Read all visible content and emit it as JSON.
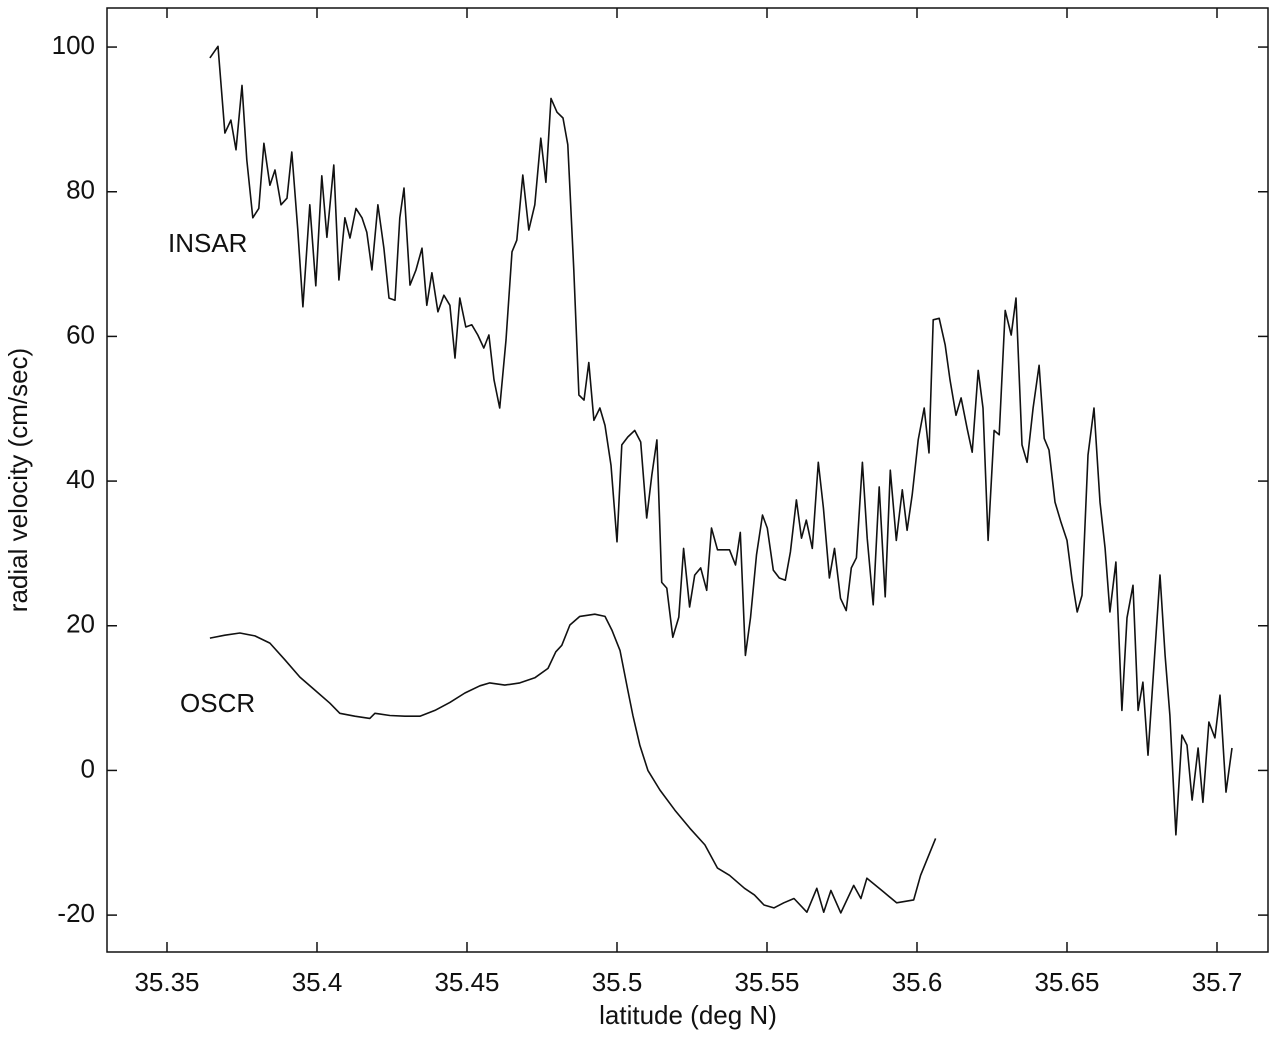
{
  "chart_data": {
    "type": "line",
    "xlabel": "latitude (deg N)",
    "ylabel": "radial velocity (cm/sec)",
    "xlim": [
      35.33,
      35.717
    ],
    "ylim": [
      -25.1,
      105.4
    ],
    "xticks": [
      35.35,
      35.4,
      35.45,
      35.5,
      35.55,
      35.6,
      35.65,
      35.7
    ],
    "yticks": [
      -20,
      0,
      20,
      40,
      60,
      80,
      100
    ],
    "grid": false,
    "series": [
      {
        "name": "INSAR",
        "color": "#111111",
        "x": [
          35.3643,
          35.367,
          35.3693,
          35.3713,
          35.373,
          35.375,
          35.3766,
          35.3786,
          35.3806,
          35.3823,
          35.3843,
          35.386,
          35.388,
          35.39,
          35.3916,
          35.3936,
          35.3953,
          35.3976,
          35.3996,
          35.4016,
          35.4033,
          35.4056,
          35.4073,
          35.4093,
          35.411,
          35.413,
          35.415,
          35.4166,
          35.4183,
          35.4203,
          35.4223,
          35.424,
          35.426,
          35.4276,
          35.429,
          35.431,
          35.433,
          35.435,
          35.4366,
          35.4383,
          35.4403,
          35.4423,
          35.4443,
          35.446,
          35.4476,
          35.4496,
          35.4516,
          35.4536,
          35.4556,
          35.4573,
          35.459,
          35.4609,
          35.463,
          35.465,
          35.4666,
          35.4686,
          35.4706,
          35.4726,
          35.4746,
          35.4763,
          35.478,
          35.48,
          35.482,
          35.4836,
          35.4856,
          35.4873,
          35.489,
          35.4906,
          35.4923,
          35.4943,
          35.496,
          35.498,
          35.5,
          35.5016,
          35.5036,
          35.5059,
          35.5079,
          35.5099,
          35.5116,
          35.5133,
          35.5149,
          35.5166,
          35.5186,
          35.5206,
          35.5222,
          35.5242,
          35.5259,
          35.5279,
          35.5299,
          35.5315,
          35.5335,
          35.5355,
          35.5375,
          35.5395,
          35.5411,
          35.5428,
          35.5445,
          35.5465,
          35.5485,
          35.5501,
          35.5521,
          35.5541,
          35.5561,
          35.5578,
          35.5598,
          35.5615,
          35.5631,
          35.5651,
          35.5671,
          35.5688,
          35.5708,
          35.5725,
          35.5745,
          35.5764,
          35.5781,
          35.5798,
          35.5818,
          35.5834,
          35.5854,
          35.5874,
          35.5894,
          35.5911,
          35.5931,
          35.5951,
          35.5967,
          35.5984,
          35.6004,
          35.6024,
          35.604,
          35.6054,
          35.6074,
          35.6094,
          35.611,
          35.613,
          35.6147,
          35.6167,
          35.6184,
          35.6204,
          35.622,
          35.6237,
          35.6257,
          35.6274,
          35.6294,
          35.6314,
          35.633,
          35.635,
          35.6367,
          35.6387,
          35.6407,
          35.6424,
          35.644,
          35.646,
          35.648,
          35.65,
          35.6517,
          35.6534,
          35.655,
          35.657,
          35.659,
          35.661,
          35.6627,
          35.6643,
          35.6663,
          35.6683,
          35.67,
          35.672,
          35.6737,
          35.6753,
          35.677,
          35.679,
          35.681,
          35.6827,
          35.6843,
          35.6863,
          35.6883,
          35.69,
          35.6917,
          35.6937,
          35.6953,
          35.6973,
          35.6993,
          35.701,
          35.703,
          35.705
        ],
        "values": [
          98.5,
          100.1,
          88.1,
          89.9,
          85.8,
          94.7,
          84.4,
          76.4,
          77.7,
          86.7,
          80.9,
          83.0,
          78.2,
          79.1,
          85.5,
          74.7,
          64.1,
          78.2,
          67.0,
          82.2,
          73.7,
          83.7,
          67.8,
          76.4,
          73.6,
          77.7,
          76.4,
          74.4,
          69.2,
          78.2,
          72.2,
          65.3,
          65.0,
          76.4,
          80.5,
          67.1,
          69.2,
          72.2,
          64.3,
          68.8,
          63.4,
          65.7,
          64.3,
          57.0,
          65.3,
          61.3,
          61.6,
          60.2,
          58.4,
          60.2,
          54.0,
          50.1,
          59.5,
          71.7,
          73.3,
          82.3,
          74.7,
          78.2,
          87.4,
          81.3,
          92.9,
          91.0,
          90.2,
          86.5,
          69.2,
          51.9,
          51.2,
          56.4,
          48.4,
          50.1,
          47.7,
          42.2,
          31.6,
          45.0,
          46.1,
          47.0,
          45.4,
          34.9,
          40.8,
          45.7,
          26.0,
          25.2,
          18.4,
          21.2,
          30.7,
          22.6,
          27.0,
          28.0,
          24.9,
          33.5,
          30.5,
          30.5,
          30.5,
          28.4,
          32.9,
          15.9,
          21.1,
          29.8,
          35.3,
          33.5,
          27.7,
          26.6,
          26.3,
          30.2,
          37.4,
          32.1,
          34.6,
          30.7,
          42.6,
          36.3,
          26.6,
          30.7,
          23.8,
          22.1,
          28.0,
          29.4,
          42.6,
          32.1,
          22.9,
          39.2,
          24.0,
          41.5,
          31.8,
          38.8,
          33.2,
          38.1,
          45.7,
          50.1,
          43.9,
          62.3,
          62.5,
          58.8,
          54.0,
          49.1,
          51.5,
          47.3,
          44.0,
          55.3,
          50.1,
          31.8,
          47.0,
          46.4,
          63.6,
          60.2,
          65.3,
          45.0,
          42.6,
          50.1,
          56.0,
          45.9,
          44.3,
          37.1,
          34.3,
          31.8,
          26.3,
          21.9,
          24.2,
          43.6,
          50.1,
          37.1,
          30.7,
          21.9,
          28.8,
          8.3,
          21.1,
          25.6,
          8.3,
          12.2,
          2.1,
          14.6,
          27.0,
          15.9,
          7.6,
          -8.9,
          4.9,
          3.5,
          -4.1,
          3.1,
          -4.4,
          6.7,
          4.5,
          10.4,
          -3.0,
          3.1
        ]
      },
      {
        "name": "OSCR",
        "color": "#111111",
        "x": [
          35.3643,
          35.3693,
          35.3743,
          35.3793,
          35.3843,
          35.3893,
          35.3943,
          35.3993,
          35.4043,
          35.4076,
          35.4126,
          35.4176,
          35.4193,
          35.4243,
          35.4293,
          35.4343,
          35.4393,
          35.4443,
          35.4493,
          35.4543,
          35.4576,
          35.4626,
          35.4676,
          35.4726,
          35.477,
          35.4796,
          35.4816,
          35.4843,
          35.4876,
          35.4926,
          35.496,
          35.4983,
          35.501,
          35.5036,
          35.5053,
          35.5076,
          35.5103,
          35.5143,
          35.5193,
          35.5243,
          35.5293,
          35.5335,
          35.5375,
          35.5425,
          35.5458,
          35.549,
          35.5523,
          35.5556,
          35.559,
          35.5633,
          35.5666,
          35.5689,
          35.5713,
          35.5746,
          35.5789,
          35.5813,
          35.5833,
          35.5889,
          35.5932,
          35.5989,
          35.6012,
          35.6062
        ],
        "values": [
          18.3,
          18.7,
          19.0,
          18.6,
          17.6,
          15.3,
          12.9,
          11.1,
          9.3,
          7.9,
          7.5,
          7.2,
          7.9,
          7.6,
          7.5,
          7.5,
          8.3,
          9.4,
          10.7,
          11.7,
          12.1,
          11.8,
          12.1,
          12.8,
          14.1,
          16.4,
          17.3,
          20.1,
          21.3,
          21.6,
          21.3,
          19.4,
          16.6,
          11.1,
          7.6,
          3.5,
          0.0,
          -2.7,
          -5.5,
          -8.0,
          -10.3,
          -13.5,
          -14.5,
          -16.3,
          -17.2,
          -18.6,
          -19.0,
          -18.3,
          -17.7,
          -19.6,
          -16.3,
          -19.6,
          -16.6,
          -19.7,
          -15.9,
          -17.7,
          -14.9,
          -16.8,
          -18.3,
          -17.9,
          -14.5,
          -9.4
        ]
      }
    ]
  }
}
